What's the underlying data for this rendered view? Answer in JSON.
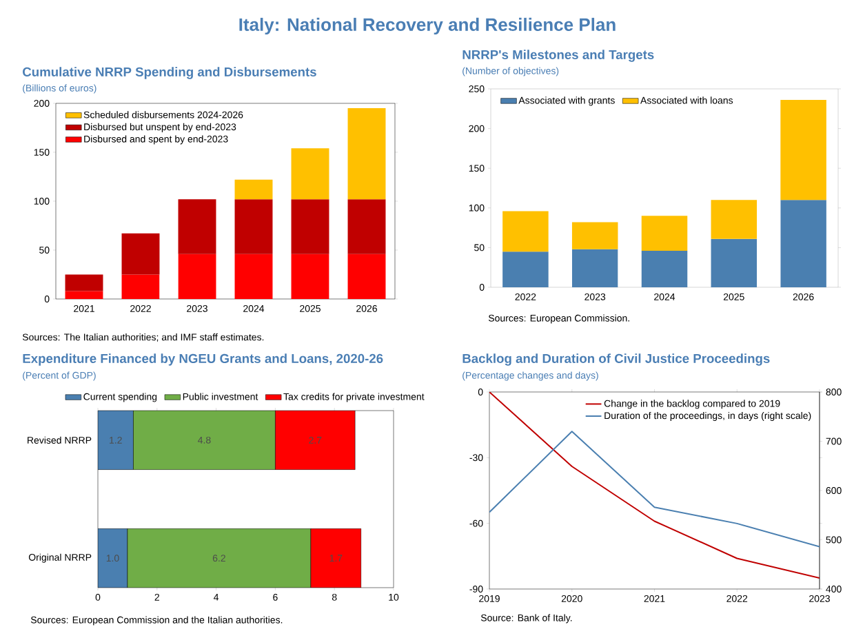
{
  "chart_data": [
    {
      "type": "other",
      "title": "Italy: National Recovery and Resilience Plan"
    },
    {
      "type": "bar",
      "title": "Cumulative NRRP Spending and Disbursements",
      "subtitle": "(Billions of euros)",
      "categories": [
        "2021",
        "2022",
        "2023",
        "2024",
        "2025",
        "2026"
      ],
      "stacked": true,
      "series": [
        {
          "name": "Disbursed and spent by end-2023",
          "color": "#ff0000",
          "values": [
            8,
            25,
            46,
            46,
            46,
            46
          ]
        },
        {
          "name": "Disbursed but unspent by end-2023",
          "color": "#c00000",
          "values": [
            17,
            42,
            56,
            56,
            56,
            56
          ]
        },
        {
          "name": "Scheduled disbursements 2024-2026",
          "color": "#ffc000",
          "values": [
            null,
            null,
            null,
            20,
            52,
            93
          ]
        }
      ],
      "ylim": [
        0,
        200
      ],
      "yticks": [
        0,
        50,
        100,
        150,
        200
      ],
      "legend": "top left",
      "annotations": [
        "Sources: The Italian authorities; and IMF staff estimates."
      ]
    },
    {
      "type": "bar",
      "title": "NRRP's Milestones and Targets",
      "subtitle": "(Number of objectives)",
      "categories": [
        "2022",
        "2023",
        "2024",
        "2025",
        "2026"
      ],
      "stacked": true,
      "series": [
        {
          "name": "Associated with grants",
          "color": "#4a7fb0",
          "values": [
            45,
            48,
            46,
            61,
            110
          ]
        },
        {
          "name": "Associated with loans",
          "color": "#ffc000",
          "values": [
            51,
            34,
            44,
            49,
            126
          ]
        }
      ],
      "ylim": [
        0,
        250
      ],
      "yticks": [
        0,
        50,
        100,
        150,
        200,
        250
      ],
      "legend": "top left",
      "annotations": [
        "Sources: European Commission."
      ]
    },
    {
      "type": "bar",
      "title": "Expenditure Financed by NGEU Grants and Loans, 2020-26",
      "subtitle": "(Percent of GDP)",
      "categories": [
        "Revised NRRP",
        "Original NRRP"
      ],
      "orientation": "horizontal",
      "stacked": true,
      "series": [
        {
          "name": "Current spending",
          "color": "#4a7fb0",
          "values": [
            1.2,
            1.0
          ],
          "value_labels": [
            "1.2",
            "1.0"
          ]
        },
        {
          "name": "Public investment",
          "color": "#70ad47",
          "values": [
            4.8,
            6.2
          ],
          "value_labels": [
            "4.8",
            "6.2"
          ]
        },
        {
          "name": "Tax credits for private investment",
          "color": "#ff0000",
          "values": [
            2.7,
            1.7
          ],
          "value_labels": [
            "2.7",
            "1.7"
          ]
        }
      ],
      "xlim": [
        0,
        10
      ],
      "xticks": [
        0,
        2,
        4,
        6,
        8,
        10
      ],
      "legend": "top",
      "annotations": [
        "Sources: European Commission and the Italian authorities."
      ]
    },
    {
      "type": "line",
      "title": "Backlog and Duration of Civil Justice Proceedings",
      "subtitle": "(Percentage changes and days)",
      "x": [
        2019,
        2020,
        2021,
        2022,
        2023
      ],
      "series": [
        {
          "name": "Change in the backlog compared to 2019",
          "color": "#c00000",
          "values": [
            0,
            -34,
            -59,
            -76,
            -85
          ]
        },
        {
          "name": "Duration of the proceedings, in days (right scale)",
          "color": "#4a7fb0",
          "axis": "y2",
          "values": [
            556,
            720,
            566,
            533,
            486
          ]
        }
      ],
      "xlim": [
        2019,
        2023
      ],
      "xticks": [
        2019,
        2020,
        2021,
        2022,
        2023
      ],
      "ylim": [
        -90,
        0
      ],
      "yticks": [
        -90,
        -60,
        -30,
        0
      ],
      "y2lim": [
        400,
        800
      ],
      "y2ticks": [
        400,
        500,
        600,
        700,
        800
      ],
      "line_style": "solid",
      "legend": "top right",
      "annotations": [
        "Source: Bank of Italy."
      ]
    }
  ]
}
